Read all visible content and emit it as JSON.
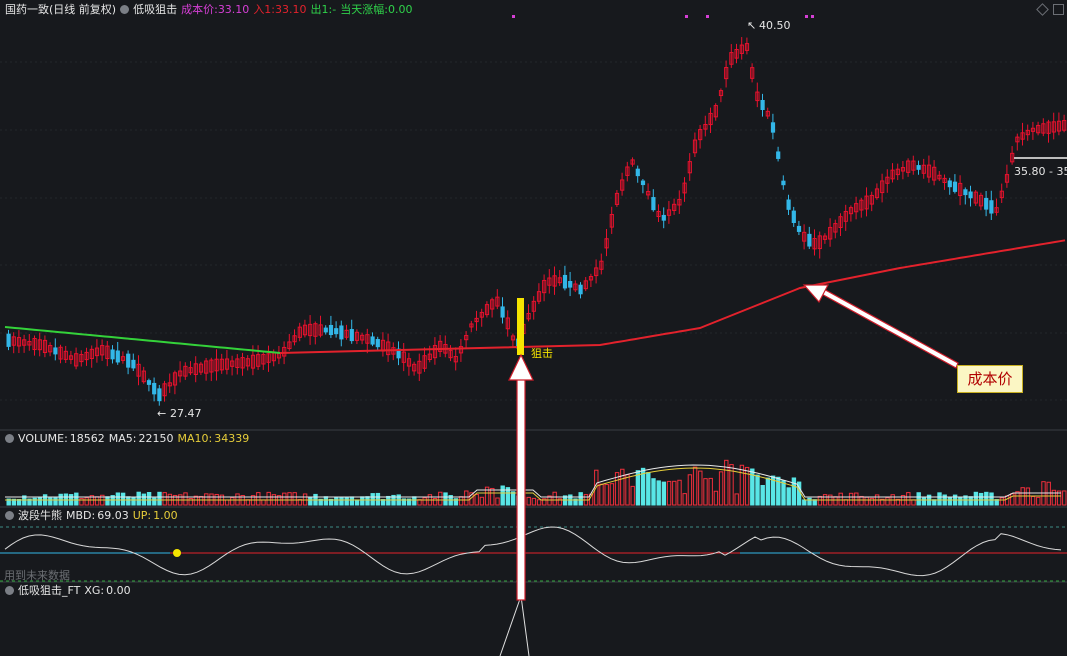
{
  "header": {
    "title": "国药一致(日线 前复权)",
    "indicator": "低吸狙击",
    "cost_label": "成本价:",
    "cost_value": "33.10",
    "in_label": "入1:",
    "in_value": "33.10",
    "out_label": "出1:",
    "out_value": "-",
    "change_label": "当天涨幅:",
    "change_value": "0.00"
  },
  "price_labels": {
    "high": "40.50",
    "low": "27.47",
    "right": "35.80 - 35",
    "signal": "狙击"
  },
  "callout": {
    "text": "成本价"
  },
  "volume_panel": {
    "name": "VOLUME:",
    "value": "18562",
    "ma5_label": "MA5:",
    "ma5_value": "22150",
    "ma10_label": "MA10:",
    "ma10_value": "34339"
  },
  "wave_panel": {
    "name": "波段牛熊",
    "mbd_label": "MBD:",
    "mbd_value": "69.03",
    "up_label": "UP:",
    "up_value": "1.00",
    "note": "用到未来数据"
  },
  "signal_panel": {
    "name": "低吸狙击_FT",
    "xg_label": "XG:",
    "xg_value": "0.00"
  },
  "colors": {
    "background": "#17191d",
    "up": "#e8112d",
    "down": "#33b7e8",
    "cost_line": "#e3222c",
    "green_line": "#34d23a",
    "volume_up": "#ef2f3b",
    "volume_down": "#59e6e6",
    "ma5": "#e9e9e9",
    "ma10": "#e6cd3a",
    "signal_bar": "#f5e400",
    "callout_bg": "#fbf6c4"
  },
  "chart_data": {
    "type": "candlestick",
    "price_high": 40.5,
    "price_low": 27.47,
    "cost_price": 33.1,
    "volume_last": 18562,
    "volume_ma5": 22150,
    "volume_ma10": 34339,
    "mbd": 69.03,
    "up": 1.0,
    "xg": 0.0
  }
}
